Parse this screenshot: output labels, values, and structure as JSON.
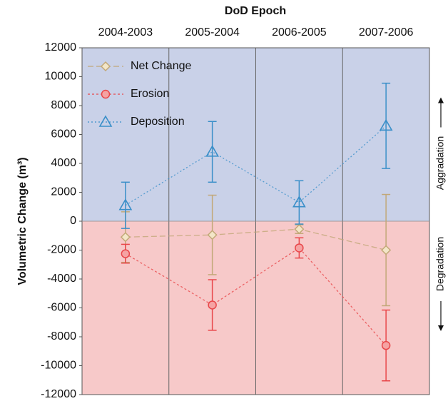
{
  "chart_data": {
    "type": "line",
    "title": "DoD Epoch",
    "y_label": "Volumetric Change (m³)",
    "annotations": [
      "Aggradation",
      "Degradation"
    ],
    "categories": [
      "2004-2003",
      "2005-2004",
      "2006-2005",
      "2007-2006"
    ],
    "series": [
      {
        "name": "Net Change",
        "color": "#c2a878",
        "marker": "diamond",
        "dash": "8,4",
        "values": [
          -1100,
          -950,
          -550,
          -2000
        ],
        "errors": [
          1750,
          2750,
          300,
          3850
        ]
      },
      {
        "name": "Erosion",
        "color": "#e8474a",
        "marker": "circle",
        "dash": "3,3",
        "values": [
          -2250,
          -5800,
          -1850,
          -8600
        ],
        "errors": [
          650,
          1750,
          700,
          2450
        ]
      },
      {
        "name": "Deposition",
        "color": "#3a8fc9",
        "marker": "triangle",
        "dash": "2,3",
        "values": [
          1100,
          4800,
          1300,
          6600
        ],
        "errors": [
          1600,
          2100,
          1500,
          2950
        ]
      }
    ],
    "ylim": [
      -12000,
      12000
    ],
    "yticks": [
      -12000,
      -10000,
      -8000,
      -6000,
      -4000,
      -2000,
      0,
      2000,
      4000,
      6000,
      8000,
      10000,
      12000
    ],
    "legend": "upper left"
  }
}
